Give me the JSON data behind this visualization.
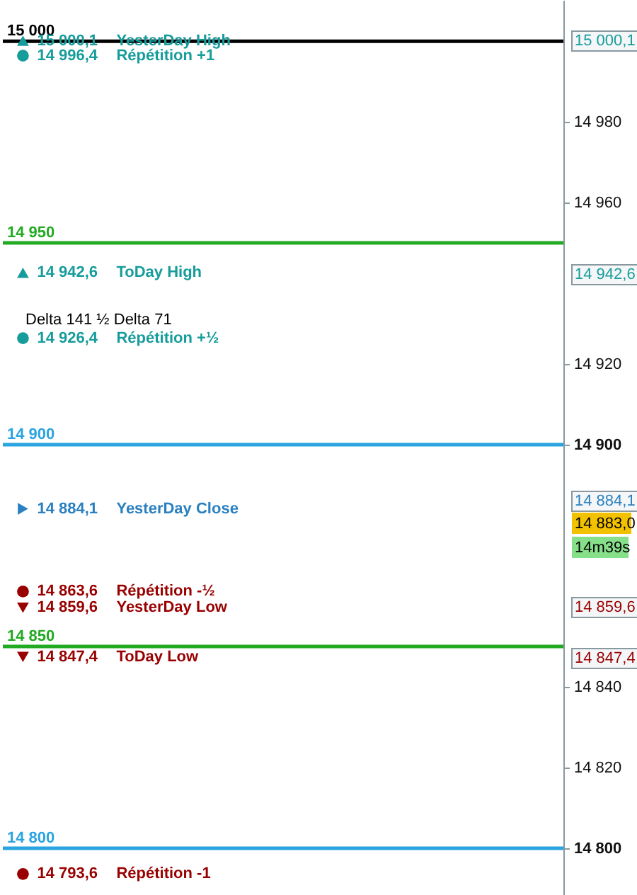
{
  "chart_data": {
    "type": "scatter",
    "categories": [
      null,
      null,
      null,
      null,
      null,
      null,
      null,
      null,
      null,
      null,
      null,
      null,
      null,
      null
    ],
    "series": [
      {
        "name": "YesterDay High",
        "color": "#179c9c",
        "marker": "triangle",
        "values": [
          15000.1,
          null,
          null,
          null,
          null,
          null,
          null,
          null,
          null,
          null,
          null,
          null,
          null,
          null
        ],
        "value_labels": [
          "15 000,1",
          null,
          null,
          null,
          null,
          null,
          null,
          null,
          null,
          null,
          null,
          null,
          null,
          null
        ]
      },
      {
        "name": "Répétition +1",
        "color": "#179c9c",
        "marker": "circle",
        "values": [
          14996.4,
          null,
          null,
          null,
          null,
          null,
          null,
          null,
          null,
          null,
          null,
          null,
          null,
          null
        ],
        "value_labels": [
          "14 996,4",
          null,
          null,
          null,
          null,
          null,
          null,
          null,
          null,
          null,
          null,
          null,
          null,
          null
        ]
      },
      {
        "name": "ToDay High",
        "color": "#179c9c",
        "marker": "triangle",
        "values": [
          14942.6,
          null,
          null,
          null,
          null,
          null,
          null,
          null,
          null,
          null,
          null,
          null,
          null,
          null
        ],
        "value_labels": [
          "14 942,6",
          null,
          null,
          null,
          null,
          null,
          null,
          null,
          null,
          null,
          null,
          null,
          null,
          null
        ]
      },
      {
        "name": "Répétition +½",
        "color": "#179c9c",
        "marker": "circle",
        "values": [
          14926.4,
          null,
          null,
          null,
          null,
          null,
          null,
          null,
          null,
          null,
          null,
          null,
          null,
          null
        ],
        "value_labels": [
          "14 926,4",
          null,
          null,
          null,
          null,
          null,
          null,
          null,
          null,
          null,
          null,
          null,
          null,
          null
        ]
      },
      {
        "name": "YesterDay Close",
        "color": "#2a80c0",
        "marker": "triangle-right",
        "values": [
          14884.1,
          null,
          null,
          null,
          null,
          null,
          null,
          null,
          null,
          null,
          null,
          null,
          null,
          null
        ],
        "value_labels": [
          "14 884,1",
          null,
          null,
          null,
          null,
          null,
          null,
          null,
          null,
          null,
          null,
          null,
          null,
          null
        ]
      },
      {
        "name": "Répétition -½",
        "color": "#990000",
        "marker": "circle",
        "values": [
          14863.6,
          null,
          null,
          null,
          null,
          null,
          null,
          null,
          null,
          null,
          null,
          null,
          null,
          null
        ],
        "value_labels": [
          "14 863,6",
          null,
          null,
          null,
          null,
          null,
          null,
          null,
          null,
          null,
          null,
          null,
          null,
          null
        ]
      },
      {
        "name": "YesterDay Low",
        "color": "#990000",
        "marker": "triangle-down",
        "values": [
          14859.6,
          null,
          null,
          null,
          null,
          null,
          null,
          null,
          null,
          null,
          null,
          null,
          null,
          null
        ],
        "value_labels": [
          "14 859,6",
          null,
          null,
          null,
          null,
          null,
          null,
          null,
          null,
          null,
          null,
          null,
          null,
          null
        ]
      },
      {
        "name": "ToDay Low",
        "color": "#990000",
        "marker": "triangle-down",
        "values": [
          14847.4,
          null,
          null,
          null,
          null,
          null,
          null,
          null,
          null,
          null,
          null,
          null,
          null,
          null
        ],
        "value_labels": [
          "14 847,4",
          null,
          null,
          null,
          null,
          null,
          null,
          null,
          null,
          null,
          null,
          null,
          null,
          null
        ]
      },
      {
        "name": "Répétition -1",
        "color": "#990000",
        "marker": "circle",
        "values": [
          14793.6,
          null,
          null,
          null,
          null,
          null,
          null,
          null,
          null,
          null,
          null,
          null,
          null,
          null
        ],
        "value_labels": [
          "14 793,6",
          null,
          null,
          null,
          null,
          null,
          null,
          null,
          null,
          null,
          null,
          null,
          null,
          null
        ]
      }
    ],
    "ylim": [
      14788.4,
      15010.2
    ],
    "yticks": [
      {
        "value": 14800,
        "label": "14 800"
      },
      {
        "value": 14820,
        "label": "14 820"
      },
      {
        "value": 14840,
        "label": "14 840"
      },
      {
        "value": 14900,
        "label": "14 900"
      },
      {
        "value": 14920,
        "label": "14 920"
      },
      {
        "value": 14960,
        "label": "14 960"
      },
      {
        "value": 14980,
        "label": "14 980"
      }
    ],
    "ref_lines": [
      {
        "axis": "y",
        "value": 15000,
        "label": "15 000",
        "color": "#000000"
      },
      {
        "axis": "y",
        "value": 14950,
        "label": "14 950",
        "color": "#22aa22"
      },
      {
        "axis": "y",
        "value": 14900,
        "label": "14 900",
        "color": "#2aa4e0"
      },
      {
        "axis": "y",
        "value": 14850,
        "label": "14 850",
        "color": "#22aa22"
      },
      {
        "axis": "y",
        "value": 14800,
        "label": "14 800",
        "color": "#2aa4e0"
      }
    ],
    "annotations": [
      "Delta 141   ½ Delta 71",
      "15 000,1",
      "14 942,6",
      "14 884,1",
      "14 883,0",
      "14m39s",
      "14 859,6",
      "14 847,4"
    ],
    "grid": false
  }
}
